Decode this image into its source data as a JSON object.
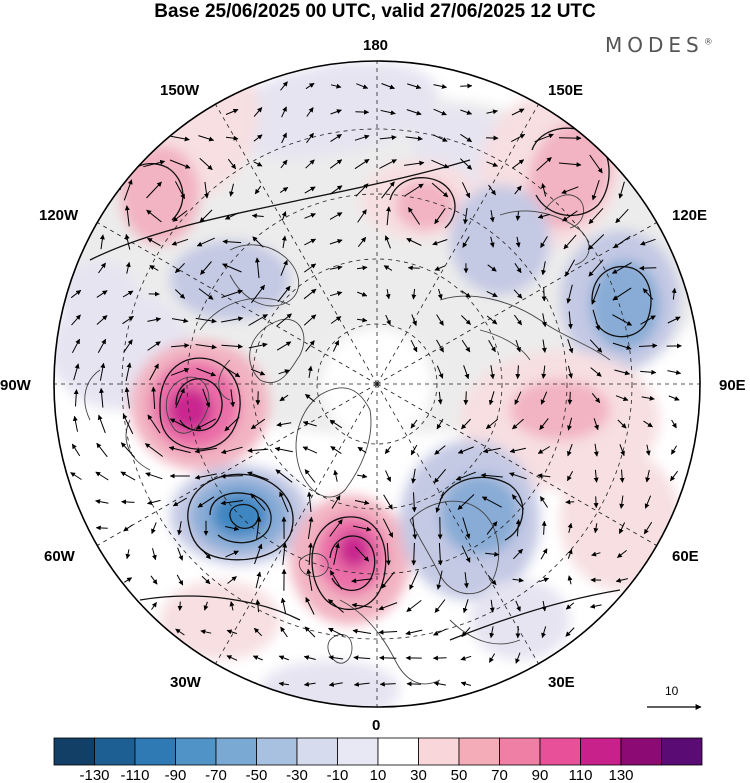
{
  "title": "Base 25/06/2025 00 UTC, valid 27/06/2025 12 UTC",
  "brand": "MODES",
  "brand_mark": "®",
  "longitude_labels": {
    "top": "180",
    "top_left": "150W",
    "top_right": "150E",
    "upper_left": "120W",
    "upper_right": "120E",
    "left": "90W",
    "right": "90E",
    "lower_left": "60W",
    "lower_right": "60E",
    "bottom_left": "30W",
    "bottom_right": "30E",
    "bottom": "0"
  },
  "vector_reference": {
    "label": "10",
    "value": 10
  },
  "colorbar": {
    "tick_labels": [
      "-130",
      "-110",
      "-90",
      "-70",
      "-50",
      "-30",
      "-10",
      "10",
      "30",
      "50",
      "70",
      "90",
      "110",
      "130"
    ],
    "colors": [
      "#123f66",
      "#1d5f92",
      "#2f79b5",
      "#4f93c7",
      "#7aa9d3",
      "#a9c1e0",
      "#d6dbee",
      "#e8e8f4",
      "#ffffff",
      "#f9d6d9",
      "#f4adb8",
      "#ef7fa4",
      "#e8519a",
      "#c9218b",
      "#8c0a73",
      "#5a0b74"
    ]
  },
  "map": {
    "projection": "north-polar-stereographic",
    "field_colors": {
      "neg_light": "#e6e4f1",
      "neg_mid": "#c4c9e4",
      "neg_strong": "#88acd6",
      "neg_core": "#3d86c2",
      "pos_light": "#f7dfe2",
      "pos_mid": "#f2b3c2",
      "pos_strong": "#ea6ea7",
      "pos_core": "#c9288f",
      "neutral_light": "#ececec"
    }
  }
}
